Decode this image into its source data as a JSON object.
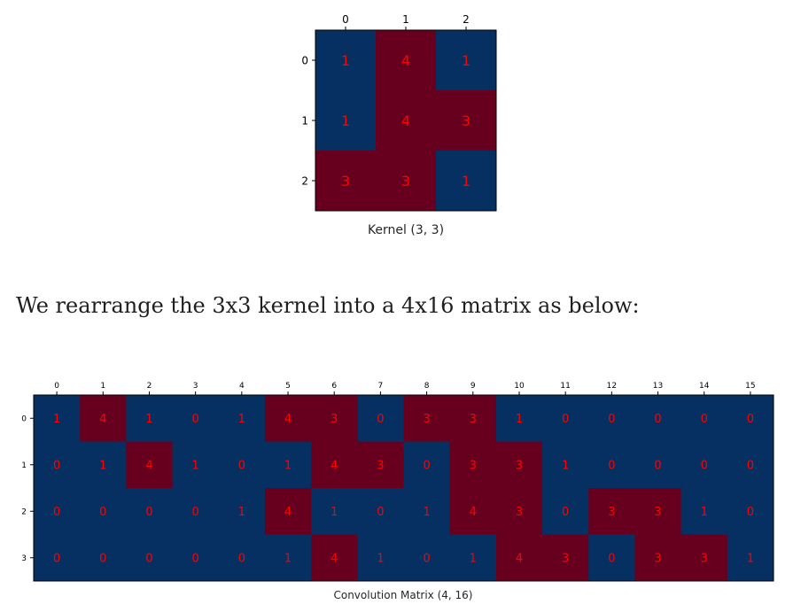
{
  "paragraph": "We rearrange the 3x3 kernel into a 4x16 matrix as below:",
  "colors": {
    "high": "#67001f",
    "low": "#053061",
    "text": "#ff0000"
  },
  "chart_data": [
    {
      "type": "heatmap",
      "title": "Kernel (3, 3)",
      "xticklabels": [
        "0",
        "1",
        "2"
      ],
      "yticklabels": [
        "0",
        "1",
        "2"
      ],
      "values": [
        [
          1,
          4,
          1
        ],
        [
          1,
          4,
          3
        ],
        [
          3,
          3,
          1
        ]
      ],
      "colormap": "RdBu_r",
      "cell_text_color": "red",
      "x_ticks_position": "top"
    },
    {
      "type": "heatmap",
      "title": "Convolution Matrix (4, 16)",
      "xticklabels": [
        "0",
        "1",
        "2",
        "3",
        "4",
        "5",
        "6",
        "7",
        "8",
        "9",
        "10",
        "11",
        "12",
        "13",
        "14",
        "15"
      ],
      "yticklabels": [
        "0",
        "1",
        "2",
        "3"
      ],
      "values": [
        [
          1,
          4,
          1,
          0,
          1,
          4,
          3,
          0,
          3,
          3,
          1,
          0,
          0,
          0,
          0,
          0
        ],
        [
          0,
          1,
          4,
          1,
          0,
          1,
          4,
          3,
          0,
          3,
          3,
          1,
          0,
          0,
          0,
          0
        ],
        [
          0,
          0,
          0,
          0,
          1,
          4,
          1,
          0,
          1,
          4,
          3,
          0,
          3,
          3,
          1,
          0
        ],
        [
          0,
          0,
          0,
          0,
          0,
          1,
          4,
          1,
          0,
          1,
          4,
          3,
          0,
          3,
          3,
          1
        ]
      ],
      "colormap": "RdBu_r",
      "cell_text_color": "red",
      "x_ticks_position": "top"
    }
  ]
}
